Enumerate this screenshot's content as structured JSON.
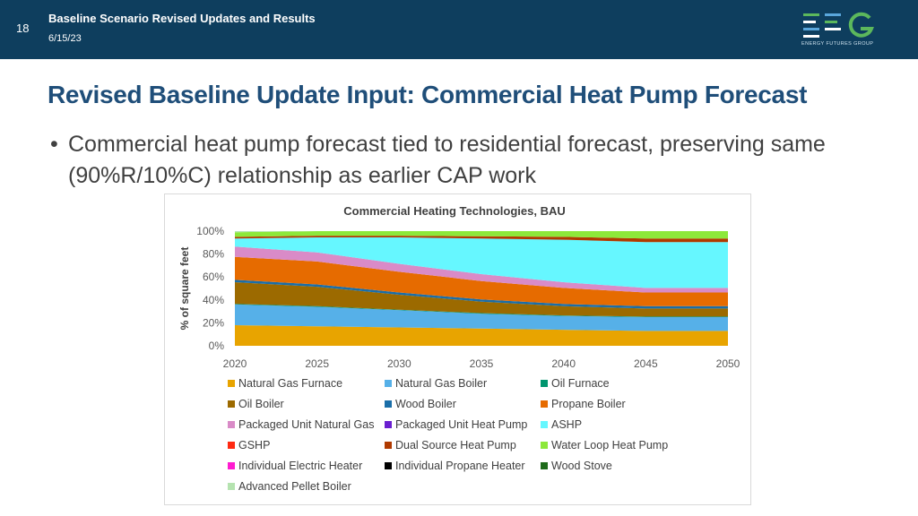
{
  "header": {
    "slide_number": "18",
    "title": "Baseline Scenario Revised Updates and Results",
    "date": "6/15/23",
    "logo_text": "ENERGY FUTURES GROUP"
  },
  "slide": {
    "title": "Revised Baseline Update Input: Commercial Heat Pump Forecast",
    "bullet": "Commercial heat pump forecast tied to residential forecast, preserving same (90%R/10%C) relationship as earlier CAP work"
  },
  "colors": {
    "header_bg": "#0e3e5e",
    "title": "#1f4e79",
    "logo_green": "#5cb85c",
    "logo_blue": "#5aa7dc"
  },
  "chart_data": {
    "type": "area",
    "stacked": true,
    "title": "Commercial Heating Technologies, BAU",
    "xlabel": "",
    "ylabel": "% of square feet",
    "x": [
      2020,
      2025,
      2030,
      2035,
      2040,
      2045,
      2050
    ],
    "x_ticks": [
      "2020",
      "2025",
      "2030",
      "2035",
      "2040",
      "2045",
      "2050"
    ],
    "ylim": [
      0,
      100
    ],
    "y_ticks": [
      "0%",
      "20%",
      "40%",
      "60%",
      "80%",
      "100%"
    ],
    "grid": false,
    "legend_position": "bottom",
    "series": [
      {
        "name": "Natural Gas Furnace",
        "color": "#e8a400",
        "values": [
          18,
          17,
          16,
          15,
          14,
          13,
          13
        ]
      },
      {
        "name": "Natural Gas Boiler",
        "color": "#56b0e8",
        "values": [
          18,
          17,
          15,
          13,
          12,
          12,
          12
        ]
      },
      {
        "name": "Oil Furnace",
        "color": "#00956e",
        "values": [
          0.5,
          0.5,
          0.5,
          0.5,
          0.5,
          0.5,
          0.5
        ]
      },
      {
        "name": "Oil Boiler",
        "color": "#9c6a00",
        "values": [
          19,
          17,
          13,
          10,
          8,
          7,
          7
        ]
      },
      {
        "name": "Wood Boiler",
        "color": "#1a6ea8",
        "values": [
          2,
          2,
          2,
          2,
          2,
          2,
          2
        ]
      },
      {
        "name": "Propane Boiler",
        "color": "#e66b00",
        "values": [
          20,
          20,
          18,
          16,
          14,
          12,
          12
        ]
      },
      {
        "name": "Packaged Unit Natural Gas",
        "color": "#d98bc7",
        "values": [
          9,
          8,
          7,
          6,
          5,
          4,
          4
        ]
      },
      {
        "name": "Packaged Unit Heat Pump",
        "color": "#6a1fd0",
        "values": [
          0,
          0,
          0,
          0,
          0,
          0,
          0
        ]
      },
      {
        "name": "ASHP",
        "color": "#66f7ff",
        "values": [
          7,
          13,
          23,
          31,
          37,
          40,
          40
        ]
      },
      {
        "name": "GSHP",
        "color": "#ff2a12",
        "values": [
          0,
          0,
          0,
          0,
          0,
          0,
          0
        ]
      },
      {
        "name": "Dual Source Heat Pump",
        "color": "#b03a00",
        "values": [
          1.5,
          1.5,
          1.5,
          2,
          2.5,
          3,
          3
        ]
      },
      {
        "name": "Water Loop Heat Pump",
        "color": "#8de83a",
        "values": [
          4,
          4,
          4,
          4.5,
          5,
          6.5,
          6.5
        ]
      },
      {
        "name": "Individual Electric Heater",
        "color": "#ff1cd0",
        "values": [
          0,
          0,
          0,
          0,
          0,
          0,
          0
        ]
      },
      {
        "name": "Individual Propane Heater",
        "color": "#000000",
        "values": [
          0,
          0,
          0,
          0,
          0,
          0,
          0
        ]
      },
      {
        "name": "Wood Stove",
        "color": "#1e6b1a",
        "values": [
          0,
          0,
          0,
          0,
          0,
          0,
          0
        ]
      },
      {
        "name": "Advanced Pellet Boiler",
        "color": "#b5e3b0",
        "values": [
          1,
          0,
          0,
          0,
          0,
          0,
          0
        ]
      }
    ]
  }
}
